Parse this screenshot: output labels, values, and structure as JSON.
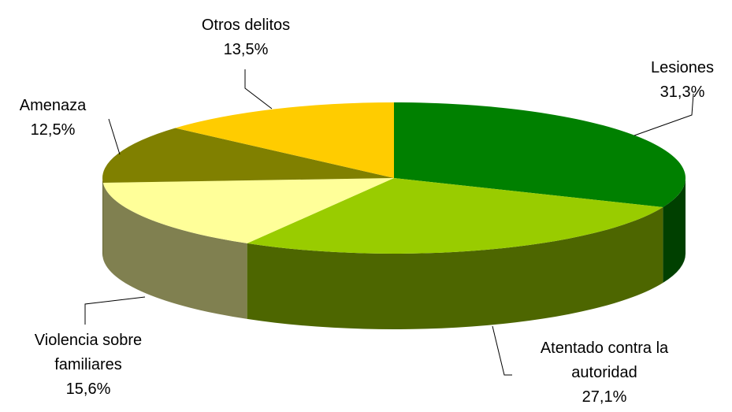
{
  "chart_data": {
    "type": "pie",
    "style": "3d",
    "legend": "none",
    "slices": [
      {
        "name": "Lesiones",
        "value": 31.3,
        "display": "31,3%",
        "label_lines": [
          "Lesiones"
        ],
        "color": "#008000",
        "side_color": "#004000"
      },
      {
        "name": "Atentado contra la autoridad",
        "value": 27.1,
        "display": "27,1%",
        "label_lines": [
          "Atentado contra la",
          "autoridad"
        ],
        "color": "#99CC00",
        "side_color": "#4D6600"
      },
      {
        "name": "Violencia sobre familiares",
        "value": 15.6,
        "display": "15,6%",
        "label_lines": [
          "Violencia sobre",
          "familiares"
        ],
        "color": "#FFFF99",
        "side_color": "#808050"
      },
      {
        "name": "Amenaza",
        "value": 12.5,
        "display": "12,5%",
        "label_lines": [
          "Amenaza"
        ],
        "color": "#808000",
        "side_color": "#404000"
      },
      {
        "name": "Otros delitos",
        "value": 13.5,
        "display": "13,5%",
        "label_lines": [
          "Otros delitos"
        ],
        "color": "#FFCC00",
        "side_color": "#806600"
      }
    ]
  }
}
